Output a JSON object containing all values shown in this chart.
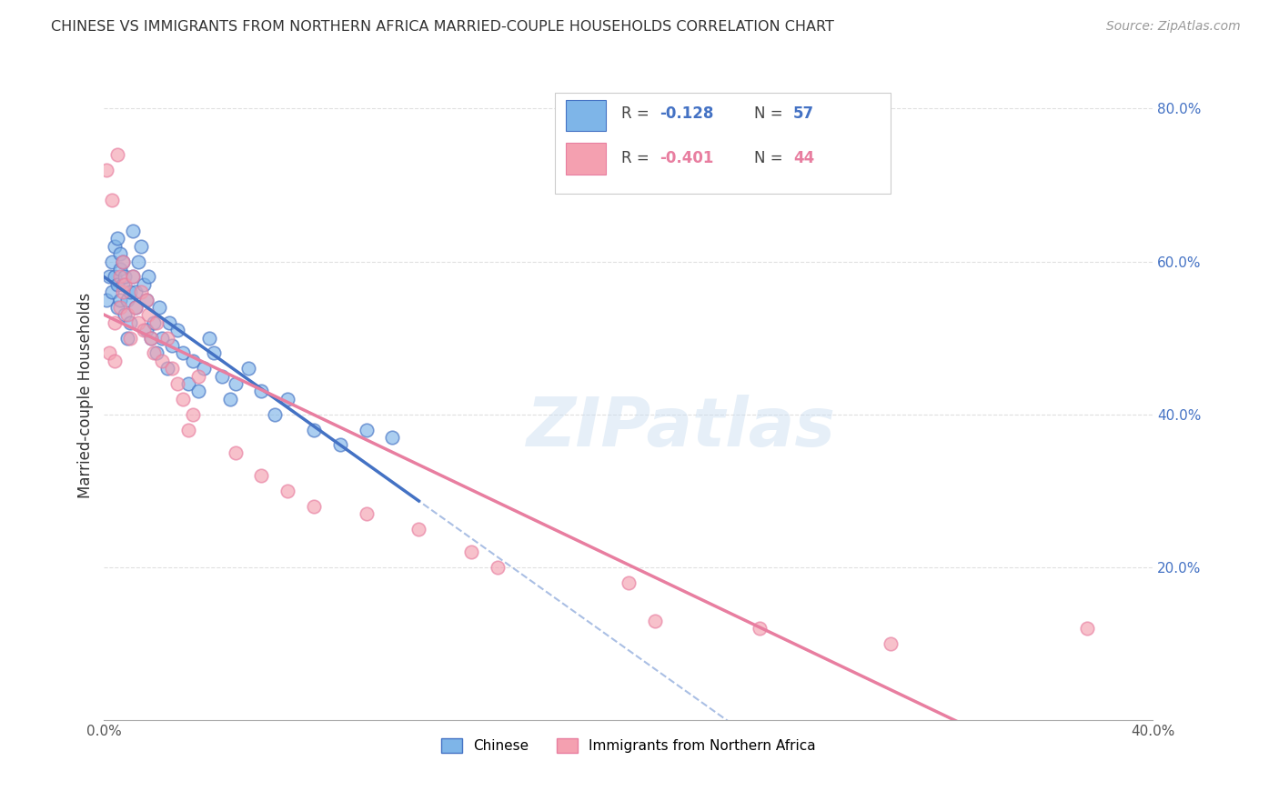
{
  "title": "CHINESE VS IMMIGRANTS FROM NORTHERN AFRICA MARRIED-COUPLE HOUSEHOLDS CORRELATION CHART",
  "source": "Source: ZipAtlas.com",
  "ylabel": "Married-couple Households",
  "x_min": 0.0,
  "x_max": 0.4,
  "y_min": 0.0,
  "y_max": 0.85,
  "legend_r1": "-0.128",
  "legend_n1": "57",
  "legend_r2": "-0.401",
  "legend_n2": "44",
  "color_blue": "#7EB5E8",
  "color_pink": "#F4A0B0",
  "color_blue_line": "#4472C4",
  "color_pink_line": "#E87EA0",
  "color_grid": "#DDDDDD",
  "watermark": "ZIPatlas",
  "blue_scatter_x": [
    0.001,
    0.002,
    0.003,
    0.003,
    0.004,
    0.004,
    0.005,
    0.005,
    0.005,
    0.006,
    0.006,
    0.006,
    0.007,
    0.007,
    0.008,
    0.008,
    0.009,
    0.009,
    0.01,
    0.01,
    0.011,
    0.011,
    0.012,
    0.012,
    0.013,
    0.014,
    0.015,
    0.016,
    0.016,
    0.017,
    0.018,
    0.019,
    0.02,
    0.021,
    0.022,
    0.024,
    0.025,
    0.026,
    0.028,
    0.03,
    0.032,
    0.034,
    0.036,
    0.038,
    0.04,
    0.042,
    0.045,
    0.048,
    0.05,
    0.055,
    0.06,
    0.065,
    0.07,
    0.08,
    0.09,
    0.1,
    0.11
  ],
  "blue_scatter_y": [
    0.55,
    0.58,
    0.6,
    0.56,
    0.62,
    0.58,
    0.63,
    0.57,
    0.54,
    0.61,
    0.59,
    0.55,
    0.6,
    0.57,
    0.58,
    0.53,
    0.55,
    0.5,
    0.52,
    0.56,
    0.64,
    0.58,
    0.56,
    0.54,
    0.6,
    0.62,
    0.57,
    0.55,
    0.51,
    0.58,
    0.5,
    0.52,
    0.48,
    0.54,
    0.5,
    0.46,
    0.52,
    0.49,
    0.51,
    0.48,
    0.44,
    0.47,
    0.43,
    0.46,
    0.5,
    0.48,
    0.45,
    0.42,
    0.44,
    0.46,
    0.43,
    0.4,
    0.42,
    0.38,
    0.36,
    0.38,
    0.37
  ],
  "pink_scatter_x": [
    0.001,
    0.002,
    0.003,
    0.004,
    0.004,
    0.005,
    0.006,
    0.006,
    0.007,
    0.007,
    0.008,
    0.009,
    0.01,
    0.011,
    0.012,
    0.013,
    0.014,
    0.015,
    0.016,
    0.017,
    0.018,
    0.019,
    0.02,
    0.022,
    0.024,
    0.026,
    0.028,
    0.03,
    0.032,
    0.034,
    0.036,
    0.05,
    0.06,
    0.07,
    0.08,
    0.1,
    0.12,
    0.14,
    0.15,
    0.2,
    0.21,
    0.25,
    0.3,
    0.375
  ],
  "pink_scatter_y": [
    0.72,
    0.48,
    0.68,
    0.52,
    0.47,
    0.74,
    0.58,
    0.54,
    0.6,
    0.56,
    0.57,
    0.53,
    0.5,
    0.58,
    0.54,
    0.52,
    0.56,
    0.51,
    0.55,
    0.53,
    0.5,
    0.48,
    0.52,
    0.47,
    0.5,
    0.46,
    0.44,
    0.42,
    0.38,
    0.4,
    0.45,
    0.35,
    0.32,
    0.3,
    0.28,
    0.27,
    0.25,
    0.22,
    0.2,
    0.18,
    0.13,
    0.12,
    0.1,
    0.12
  ]
}
